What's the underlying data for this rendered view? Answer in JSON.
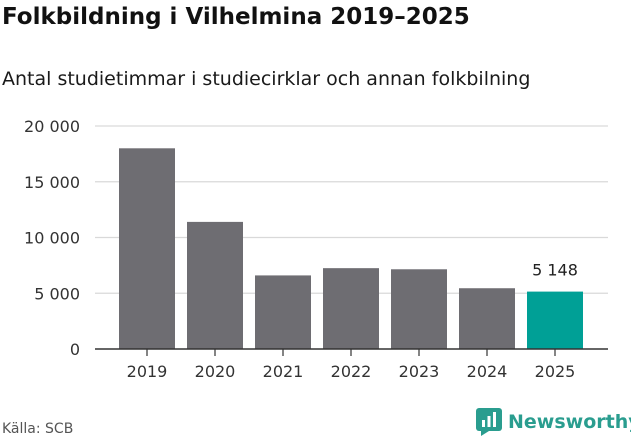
{
  "title": "Folkbildning i Vilhelmina 2019–2025",
  "subtitle": "Antal studietimmar i studiecirklar och annan folkbilning",
  "source": "Källa: SCB",
  "brand": "Newsworthy",
  "colors": {
    "bar": "#6e6d72",
    "highlight": "#00a096",
    "grid": "#d9d9d9",
    "axis": "#333333",
    "brand": "#2a9d8f"
  },
  "chart_data": {
    "type": "bar",
    "title": "Folkbildning i Vilhelmina 2019–2025",
    "subtitle": "Antal studietimmar i studiecirklar och annan folkbilning",
    "categories": [
      "2019",
      "2020",
      "2021",
      "2022",
      "2023",
      "2024",
      "2025"
    ],
    "values": [
      18000,
      11400,
      6600,
      7250,
      7150,
      5450,
      5148
    ],
    "highlight_index": 6,
    "data_labels": [
      {
        "index": 6,
        "text": "5 148"
      }
    ],
    "ylim": [
      0,
      20000
    ],
    "yticks": [
      0,
      5000,
      10000,
      15000,
      20000
    ],
    "ytick_labels": [
      "0",
      "5 000",
      "10 000",
      "15 000",
      "20 000"
    ],
    "xlabel": "",
    "ylabel": "",
    "grid": true
  }
}
